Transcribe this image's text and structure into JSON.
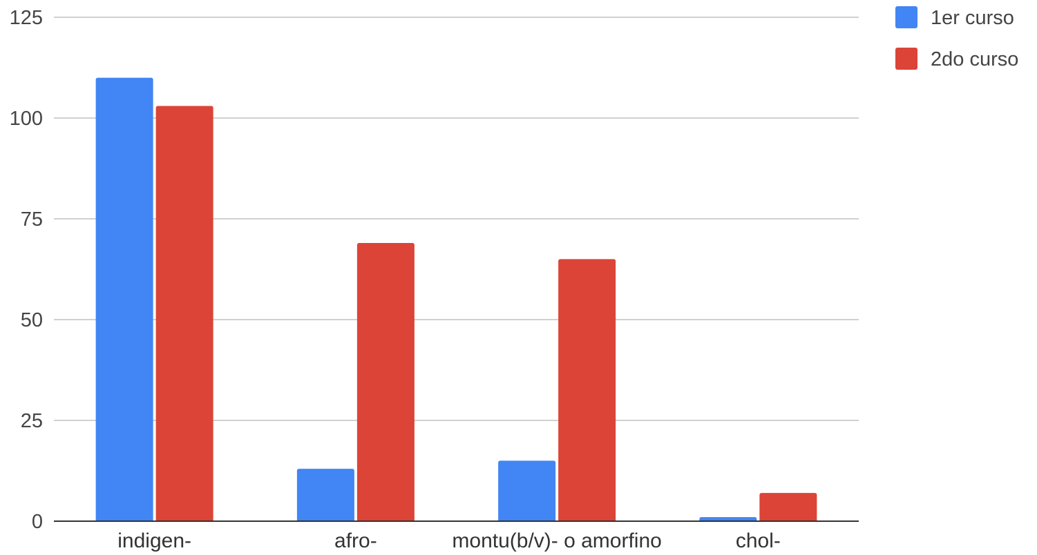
{
  "chart_data": {
    "type": "bar",
    "title": "",
    "xlabel": "",
    "ylabel": "",
    "categories": [
      "indigen-",
      "afro-",
      "montu(b/v)- o amorfino",
      "chol-"
    ],
    "series": [
      {
        "name": "1er curso",
        "color": "#4285f4",
        "values": [
          110,
          13,
          15,
          1
        ]
      },
      {
        "name": "2do curso",
        "color": "#db4437",
        "values": [
          103,
          69,
          65,
          7
        ]
      }
    ],
    "ylim": [
      0,
      125
    ],
    "yticks": [
      0,
      25,
      50,
      75,
      100,
      125
    ],
    "grid": true,
    "legend_position": "right"
  }
}
